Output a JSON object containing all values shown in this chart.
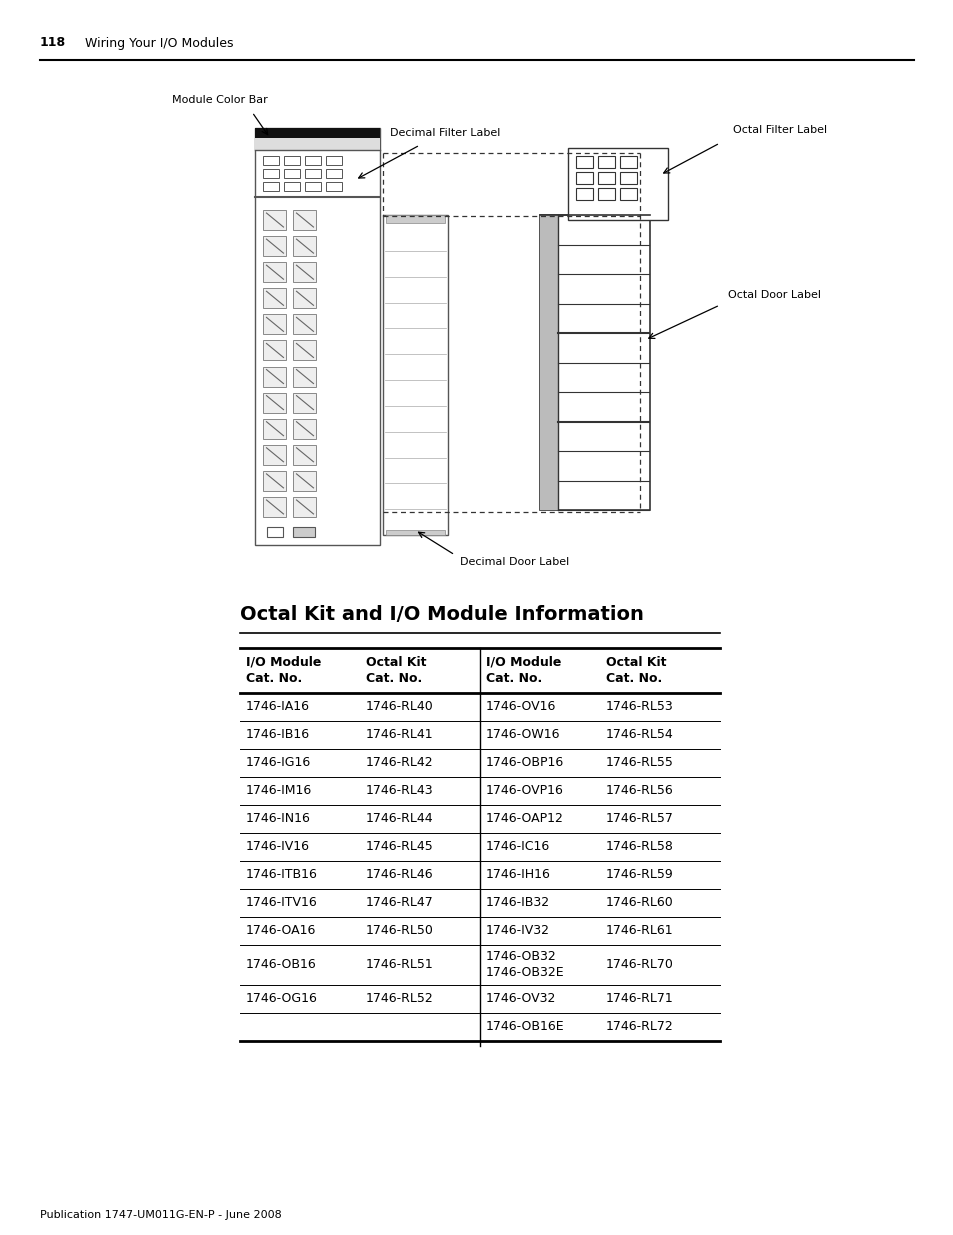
{
  "page_num": "118",
  "page_title": "Wiring Your I/O Modules",
  "section_title": "Octal Kit and I/O Module Information",
  "footer": "Publication 1747-UM011G-EN-P - June 2008",
  "diagram_labels": {
    "module_color_bar": "Module Color Bar",
    "decimal_filter_label": "Decimal Filter Label",
    "octal_filter_label": "Octal Filter Label",
    "octal_door_label": "Octal Door Label",
    "decimal_door_label": "Decimal Door Label"
  },
  "table_rows": [
    [
      "1746-IA16",
      "1746-RL40",
      "1746-OV16",
      "1746-RL53"
    ],
    [
      "1746-IB16",
      "1746-RL41",
      "1746-OW16",
      "1746-RL54"
    ],
    [
      "1746-IG16",
      "1746-RL42",
      "1746-OBP16",
      "1746-RL55"
    ],
    [
      "1746-IM16",
      "1746-RL43",
      "1746-OVP16",
      "1746-RL56"
    ],
    [
      "1746-IN16",
      "1746-RL44",
      "1746-OAP12",
      "1746-RL57"
    ],
    [
      "1746-IV16",
      "1746-RL45",
      "1746-IC16",
      "1746-RL58"
    ],
    [
      "1746-ITB16",
      "1746-RL46",
      "1746-IH16",
      "1746-RL59"
    ],
    [
      "1746-ITV16",
      "1746-RL47",
      "1746-IB32",
      "1746-RL60"
    ],
    [
      "1746-OA16",
      "1746-RL50",
      "1746-IV32",
      "1746-RL61"
    ],
    [
      "1746-OB16",
      "1746-RL51",
      "1746-OB32\n1746-OB32E",
      "1746-RL70"
    ],
    [
      "1746-OG16",
      "1746-RL52",
      "1746-OV32",
      "1746-RL71"
    ],
    [
      "",
      "",
      "1746-OB16E",
      "1746-RL72"
    ]
  ],
  "bg_color": "#ffffff"
}
